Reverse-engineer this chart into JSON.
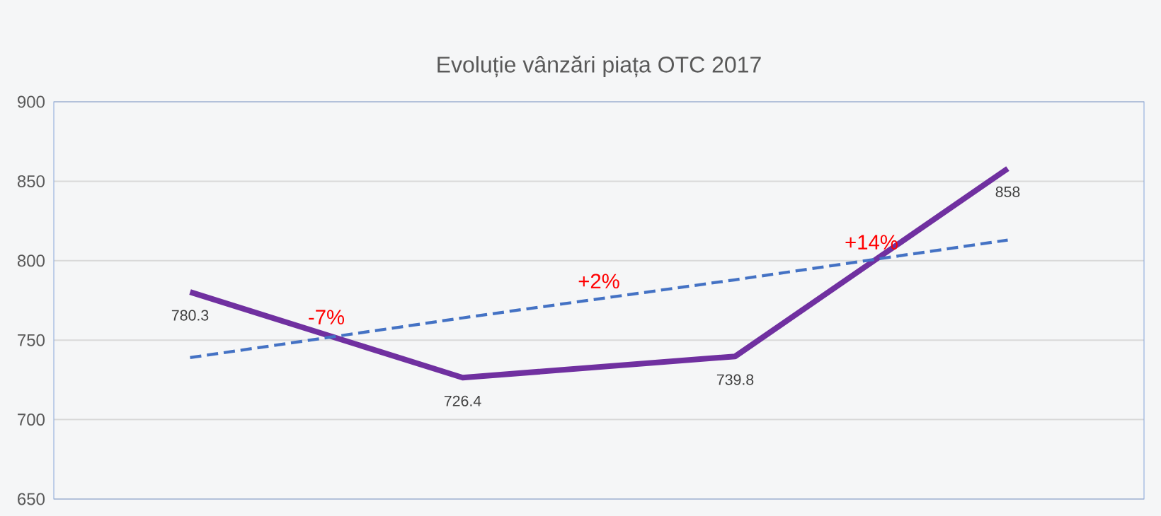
{
  "chart_data": {
    "type": "line",
    "title": "Evoluție vânzări piața OTC 2017",
    "categories": [
      null,
      null,
      null,
      null
    ],
    "series": [
      {
        "color": "#7030a0",
        "values": [
          780.3,
          726.4,
          739.8,
          858
        ],
        "data_labels": true
      },
      {
        "type": "line",
        "color": "#4472c4",
        "values": [
          739,
          764,
          788,
          813
        ],
        "line_style": "dashed"
      }
    ],
    "annotations": [
      "-7%",
      "+2%",
      "+14%"
    ],
    "ylim": [
      650,
      900
    ],
    "yticks": [
      650,
      700,
      750,
      800,
      850,
      900
    ],
    "grid": "y",
    "tick_labels": "y",
    "marker": "none"
  }
}
